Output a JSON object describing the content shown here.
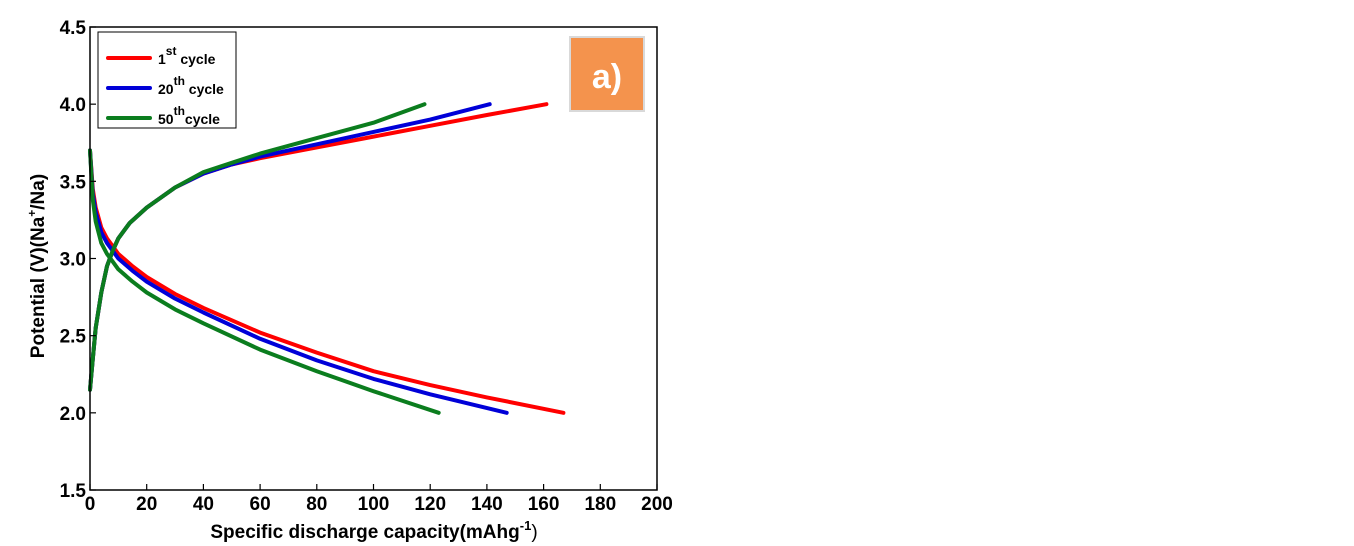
{
  "chart_data": {
    "type": "line",
    "panel_label": "a)",
    "panel_color": "#f4934d",
    "ylabel_parts": [
      "Potential (V)(Na",
      "+",
      "/Na)"
    ],
    "xlabel_parts": [
      "Specific discharge capacity(mAhg",
      "-1",
      ")"
    ],
    "xlim": [
      0,
      200
    ],
    "ylim": [
      1.5,
      4.5
    ],
    "xticks": [
      0,
      20,
      40,
      60,
      80,
      100,
      120,
      140,
      160,
      180,
      200
    ],
    "yticks": [
      1.5,
      2.0,
      2.5,
      3.0,
      3.5,
      4.0,
      4.5
    ],
    "ytick_labels": [
      "1.5",
      "2.0",
      "2.5",
      "3.0",
      "3.5",
      "4.0",
      "4.5"
    ],
    "grid": false,
    "legend_position": "top-left",
    "series": [
      {
        "legend": [
          "1",
          "st",
          " cycle"
        ],
        "color": "#ff0000",
        "charge": {
          "x": [
            0,
            1,
            2,
            4,
            6,
            8,
            10,
            14,
            20,
            30,
            40,
            50,
            60,
            80,
            100,
            120,
            140,
            161
          ],
          "y": [
            2.15,
            2.35,
            2.55,
            2.78,
            2.95,
            3.05,
            3.13,
            3.23,
            3.33,
            3.46,
            3.55,
            3.61,
            3.65,
            3.72,
            3.79,
            3.86,
            3.93,
            4.0
          ]
        },
        "discharge": {
          "x": [
            0,
            1,
            2,
            4,
            6,
            8,
            10,
            15,
            20,
            30,
            40,
            60,
            80,
            100,
            120,
            140,
            167
          ],
          "y": [
            3.7,
            3.45,
            3.33,
            3.2,
            3.13,
            3.08,
            3.03,
            2.95,
            2.88,
            2.77,
            2.68,
            2.52,
            2.39,
            2.27,
            2.18,
            2.1,
            2.0
          ]
        }
      },
      {
        "legend": [
          "20",
          "th",
          " cycle"
        ],
        "color": "#0000d8",
        "charge": {
          "x": [
            0,
            1,
            2,
            4,
            6,
            8,
            10,
            14,
            20,
            30,
            40,
            50,
            60,
            80,
            100,
            120,
            141
          ],
          "y": [
            2.15,
            2.35,
            2.55,
            2.78,
            2.95,
            3.05,
            3.13,
            3.23,
            3.33,
            3.46,
            3.55,
            3.61,
            3.66,
            3.74,
            3.82,
            3.9,
            4.0
          ]
        },
        "discharge": {
          "x": [
            0,
            1,
            2,
            4,
            6,
            8,
            10,
            15,
            20,
            30,
            40,
            60,
            80,
            100,
            120,
            147
          ],
          "y": [
            3.7,
            3.42,
            3.3,
            3.17,
            3.1,
            3.05,
            3.0,
            2.92,
            2.85,
            2.74,
            2.65,
            2.48,
            2.34,
            2.22,
            2.12,
            2.0
          ]
        }
      },
      {
        "legend": [
          "50",
          "th",
          "cycle"
        ],
        "color": "#0b7d1e",
        "charge": {
          "x": [
            0,
            1,
            2,
            4,
            6,
            8,
            10,
            14,
            20,
            30,
            40,
            50,
            60,
            80,
            100,
            118
          ],
          "y": [
            2.15,
            2.35,
            2.55,
            2.78,
            2.95,
            3.05,
            3.13,
            3.23,
            3.33,
            3.46,
            3.56,
            3.62,
            3.68,
            3.78,
            3.88,
            4.0
          ]
        },
        "discharge": {
          "x": [
            0,
            1,
            2,
            4,
            6,
            8,
            10,
            15,
            20,
            30,
            40,
            60,
            80,
            100,
            123
          ],
          "y": [
            3.7,
            3.38,
            3.24,
            3.1,
            3.03,
            2.98,
            2.93,
            2.85,
            2.78,
            2.67,
            2.58,
            2.41,
            2.27,
            2.14,
            2.0
          ]
        }
      }
    ]
  }
}
